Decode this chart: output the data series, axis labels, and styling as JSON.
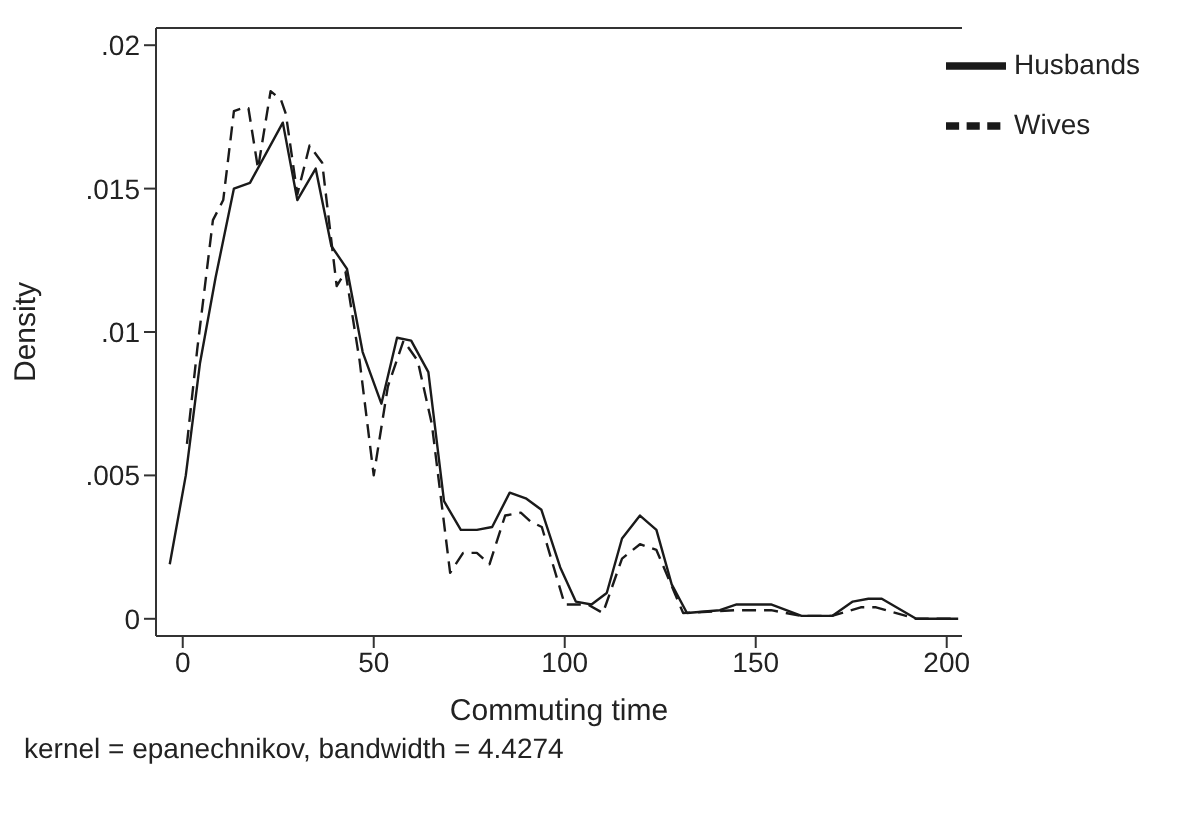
{
  "chart_data": {
    "type": "line",
    "xlabel": "Commuting time",
    "ylabel": "Density",
    "legend": "top right",
    "xlim": [
      -7,
      204
    ],
    "xticks": [
      0,
      50,
      100,
      150,
      200
    ],
    "ylim": [
      -0.0006,
      0.0206
    ],
    "yticks": [
      {
        "value": 0,
        "label": "0"
      },
      {
        "value": 0.005,
        "label": ".005"
      },
      {
        "value": 0.01,
        "label": ".01"
      },
      {
        "value": 0.015,
        "label": ".015"
      },
      {
        "value": 0.02,
        "label": ".02"
      }
    ],
    "annotations": [
      "kernel = epanechnikov, bandwidth = 4.4274"
    ],
    "series": [
      {
        "name": "Husbands",
        "color": "#1a1a1a",
        "line_style": "solid",
        "x": [
          -3.4,
          0.8,
          4.5,
          8.6,
          13.4,
          17.6,
          26.2,
          30,
          34.8,
          38.9,
          43,
          47.1,
          52,
          56.1,
          59.8,
          64.3,
          68.4,
          72.8,
          77,
          81,
          85.6,
          89.8,
          93.9,
          98.8,
          102.9,
          107,
          111,
          115,
          119.7,
          124,
          128,
          132,
          140.6,
          145,
          154,
          162,
          170,
          175.4,
          179.5,
          183,
          192,
          203
        ],
        "values": [
          0.0019,
          0.005,
          0.0089,
          0.0119,
          0.015,
          0.0152,
          0.0173,
          0.0146,
          0.0157,
          0.013,
          0.0122,
          0.0093,
          0.0075,
          0.0098,
          0.0097,
          0.0086,
          0.0041,
          0.0031,
          0.0031,
          0.0032,
          0.0044,
          0.0042,
          0.0038,
          0.0018,
          0.0006,
          0.0005,
          0.0009,
          0.0028,
          0.0036,
          0.0031,
          0.0012,
          0.0002,
          0.0003,
          0.0005,
          0.0005,
          0.0001,
          0.0001,
          0.0006,
          0.0007,
          0.0007,
          0,
          0
        ]
      },
      {
        "name": "Wives",
        "color": "#1a1a1a",
        "line_style": "dashed",
        "x": [
          1.1,
          3.8,
          7.9,
          10.6,
          13.4,
          15.5,
          17.2,
          19.7,
          23,
          25.7,
          27,
          30,
          33.2,
          36.5,
          40.3,
          42.6,
          46.3,
          50,
          53.7,
          57.8,
          61.5,
          65.2,
          70,
          73.4,
          77,
          80.3,
          84.4,
          88.5,
          91,
          94,
          100,
          106,
          110,
          115,
          119.7,
          124,
          131,
          144.7,
          154,
          162,
          170,
          177.5,
          181.5,
          192,
          203
        ],
        "values": [
          0.0061,
          0.0094,
          0.0139,
          0.0146,
          0.0177,
          0.0178,
          0.0178,
          0.0157,
          0.0184,
          0.0181,
          0.0176,
          0.0148,
          0.0165,
          0.0159,
          0.0116,
          0.0121,
          0.009,
          0.005,
          0.0081,
          0.0097,
          0.009,
          0.0068,
          0.0016,
          0.0023,
          0.0023,
          0.0019,
          0.0036,
          0.0037,
          0.0034,
          0.0032,
          0.0005,
          0.0005,
          0.0002,
          0.0021,
          0.0026,
          0.0024,
          0.0002,
          0.0003,
          0.0003,
          0.0001,
          0.0001,
          0.0004,
          0.0004,
          0,
          0
        ]
      }
    ]
  }
}
